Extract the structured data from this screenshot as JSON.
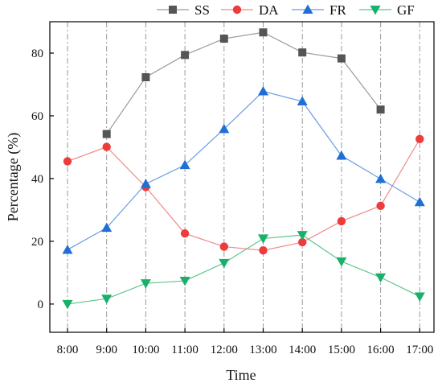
{
  "chart_data": {
    "type": "line",
    "title": "",
    "xlabel": "Time",
    "ylabel": "Percentage (%)",
    "categories": [
      "8:00",
      "9:00",
      "10:00",
      "11:00",
      "12:00",
      "13:00",
      "14:00",
      "15:00",
      "16:00",
      "17:00"
    ],
    "yticks": [
      "0",
      "20",
      "40",
      "60",
      "80"
    ],
    "ytick_values": [
      0,
      20,
      40,
      60,
      80
    ],
    "ylim": [
      -9,
      90
    ],
    "grid": "vertical-dash-dot",
    "legend_position": "top",
    "series": [
      {
        "name": "SS",
        "marker": "square",
        "color": "#555555",
        "line_color": "#9a9a9a",
        "values": [
          null,
          54.2,
          72.3,
          79.4,
          84.6,
          86.6,
          80.2,
          78.3,
          62.0,
          null
        ]
      },
      {
        "name": "DA",
        "marker": "circle",
        "color": "#ee3b3b",
        "line_color": "#f08a8a",
        "values": [
          45.5,
          50.1,
          37.3,
          22.5,
          18.3,
          17.1,
          19.7,
          26.4,
          31.3,
          52.6
        ]
      },
      {
        "name": "FR",
        "marker": "triangle-up",
        "color": "#1f6fd6",
        "line_color": "#6a9ee0",
        "values": [
          17.3,
          24.3,
          38.3,
          44.3,
          55.8,
          67.8,
          64.6,
          47.3,
          39.9,
          32.5
        ]
      },
      {
        "name": "GF",
        "marker": "triangle-down",
        "color": "#19b06a",
        "line_color": "#5ec48e",
        "values": [
          0.0,
          1.7,
          6.6,
          7.4,
          13.1,
          20.9,
          22.0,
          13.6,
          8.5,
          2.4
        ]
      }
    ]
  }
}
